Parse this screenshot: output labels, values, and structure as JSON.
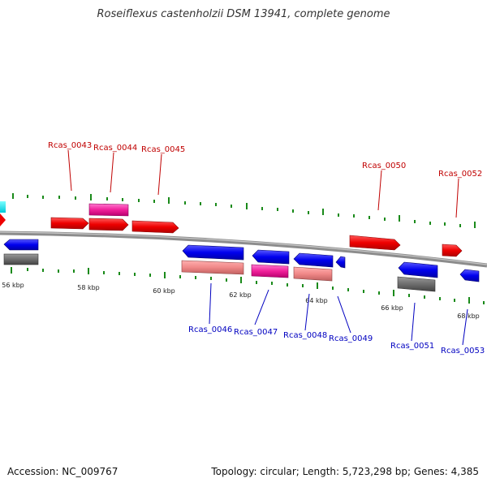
{
  "title": "Roseiflexus castenholzii DSM 13941, complete genome",
  "footer": {
    "accession": "Accession: NC_009767",
    "summary": "Topology: circular; Length: 5,723,298 bp; Genes: 4,385"
  },
  "colors": {
    "backbone": "#8c8c8c",
    "tick": "#1a8a1a",
    "forward_label": "#c00000",
    "reverse_label": "#0000c0"
  },
  "scale_labels": [
    "56 kbp",
    "58 kbp",
    "60 kbp",
    "62 kbp",
    "64 kbp",
    "66 kbp",
    "68 kbp"
  ],
  "forward_gene_labels": [
    "Rcas_0043",
    "Rcas_0044",
    "Rcas_0045",
    "Rcas_0050",
    "Rcas_0052"
  ],
  "reverse_gene_labels": [
    "Rcas_0046",
    "Rcas_0047",
    "Rcas_0048",
    "Rcas_0049",
    "Rcas_0051",
    "Rcas_0053"
  ]
}
